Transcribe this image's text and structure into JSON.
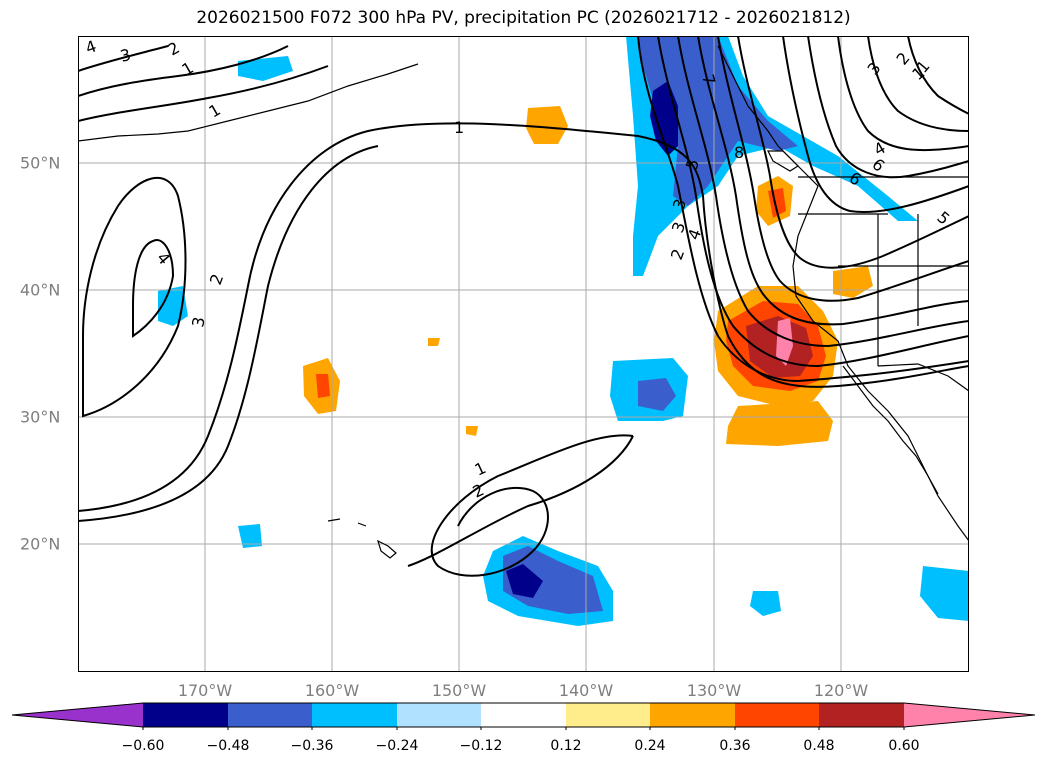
{
  "title": "2026021500 F072 300 hPa PV, precipitation PC (2026021712 - 2026021812)",
  "map": {
    "lon_labels": [
      "170°W",
      "160°W",
      "150°W",
      "140°W",
      "130°W",
      "120°W"
    ],
    "lat_labels": [
      "50°N",
      "40°N",
      "30°N",
      "20°N"
    ],
    "pv_contour_labels": [
      "4",
      "3",
      "2",
      "1",
      "1",
      "1",
      "2",
      "3",
      "4",
      "1",
      "2",
      "3",
      "4",
      "5",
      "6",
      "7",
      "8",
      "3",
      "2",
      "1",
      "5",
      "6",
      "4",
      "3",
      "2",
      "1"
    ]
  },
  "colorbar": {
    "ticks": [
      "−0.60",
      "−0.48",
      "−0.36",
      "−0.24",
      "−0.12",
      "0.12",
      "0.24",
      "0.36",
      "0.48",
      "0.60"
    ],
    "colors": [
      "#9932cc",
      "#00008b",
      "#3a5fcd",
      "#00bfff",
      "#b0e2ff",
      "#ffffff",
      "#ffec8b",
      "#ffa500",
      "#ff4500",
      "#b22222",
      "#ff82ab"
    ]
  }
}
